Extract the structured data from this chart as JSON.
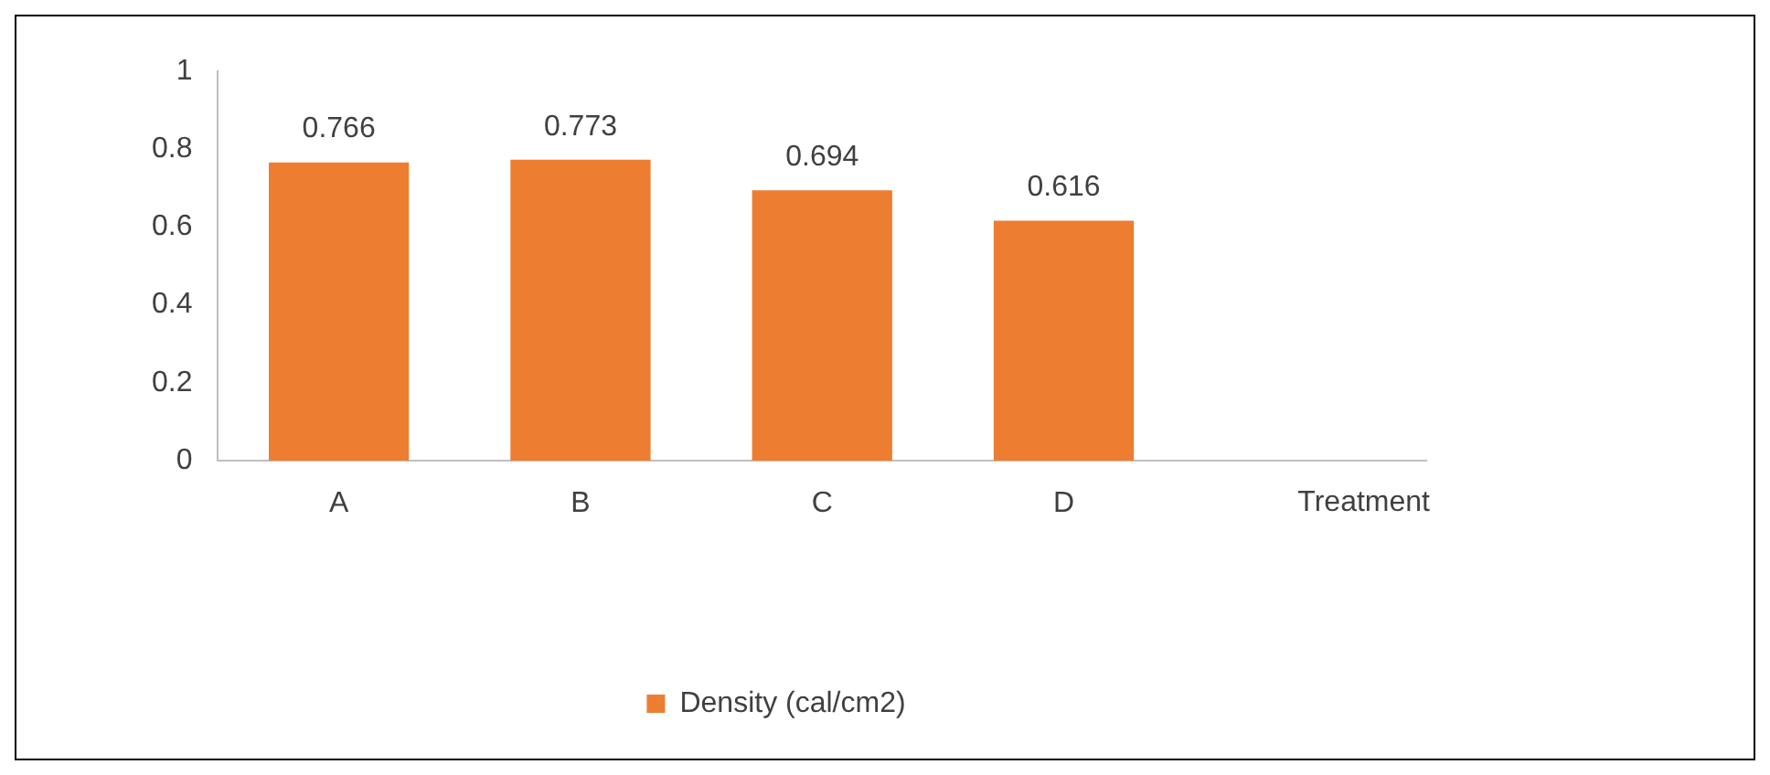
{
  "chart_data": {
    "type": "bar",
    "xlabel": "Treatment",
    "categories": [
      "A",
      "B",
      "C",
      "D"
    ],
    "series": [
      {
        "name": "Density (cal/cm2)",
        "color": "#ed7d31",
        "values": [
          0.766,
          0.773,
          0.694,
          0.616
        ]
      }
    ],
    "ylim": [
      0,
      1
    ],
    "yticks": [
      0,
      0.2,
      0.4,
      0.6,
      0.8,
      1
    ],
    "grid": false,
    "legend": "bottom",
    "data_labels": true
  }
}
